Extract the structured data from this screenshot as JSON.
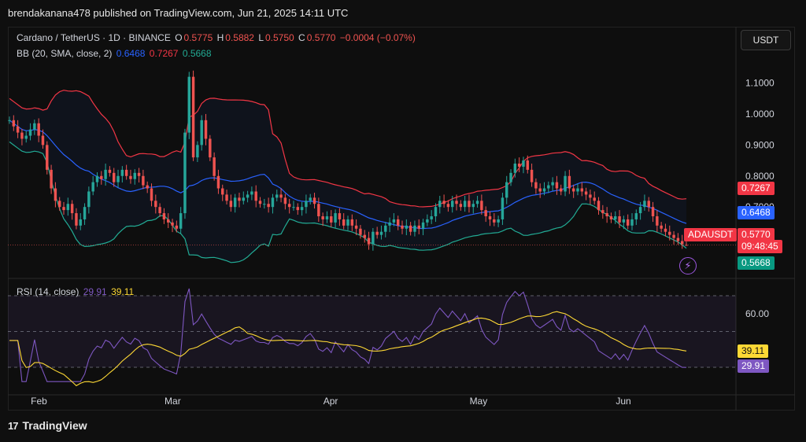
{
  "header": {
    "published_by": "brendakanana478 published on TradingView.com, Jun 21, 2025 14:11 UTC"
  },
  "symbol": {
    "title": "Cardano / TetherUS · 1D · BINANCE",
    "open_label": "O",
    "open": "0.5775",
    "high_label": "H",
    "high": "0.5882",
    "low_label": "L",
    "low": "0.5750",
    "close_label": "C",
    "close": "0.5770",
    "change": "−0.0004 (−0.07%)",
    "unit_button": "USDT",
    "ticker": "ADAUSDT",
    "countdown": "09:48:45"
  },
  "bb_legend": {
    "label": "BB (20, SMA, close, 2)",
    "basis": "0.6468",
    "upper": "0.7267",
    "lower": "0.5668"
  },
  "rsi_legend": {
    "label": "RSI (14, close)",
    "rsi": "29.91",
    "rsi_ma": "39.11"
  },
  "footer": {
    "brand": "TradingView",
    "logo_glyph": "17"
  },
  "colors": {
    "up": "#26a69a",
    "down": "#ef5350",
    "bb_upper": "#f23645",
    "bb_basis": "#2962ff",
    "bb_lower": "#22ab94",
    "rsi": "#7e57c2",
    "rsi_ma": "#fdd835"
  },
  "chart_data": [
    {
      "type": "candlestick",
      "title": "Cardano / TetherUS · 1D · BINANCE",
      "price_axis": {
        "ticks": [
          "1.1000",
          "1.0000",
          "0.9000",
          "0.8000",
          "0.7000",
          "0.6000"
        ],
        "range": [
          0.5,
          1.18
        ],
        "scale": "linear"
      },
      "time_axis": {
        "ticks": [
          "Feb",
          "Mar",
          "Apr",
          "May",
          "Jun"
        ]
      },
      "ohlc_last": {
        "open": 0.5775,
        "high": 0.5882,
        "low": 0.575,
        "close": 0.577
      },
      "close_series": [
        0.98,
        0.96,
        0.94,
        0.92,
        0.93,
        0.95,
        0.97,
        0.93,
        0.9,
        0.82,
        0.76,
        0.72,
        0.7,
        0.69,
        0.71,
        0.68,
        0.64,
        0.66,
        0.7,
        0.75,
        0.78,
        0.8,
        0.79,
        0.82,
        0.81,
        0.78,
        0.8,
        0.82,
        0.8,
        0.79,
        0.81,
        0.8,
        0.77,
        0.76,
        0.72,
        0.7,
        0.68,
        0.66,
        0.65,
        0.64,
        0.63,
        0.68,
        0.94,
        1.12,
        0.86,
        0.9,
        0.98,
        0.92,
        0.86,
        0.8,
        0.76,
        0.74,
        0.72,
        0.7,
        0.73,
        0.72,
        0.73,
        0.74,
        0.75,
        0.72,
        0.71,
        0.71,
        0.7,
        0.73,
        0.74,
        0.73,
        0.71,
        0.7,
        0.7,
        0.69,
        0.7,
        0.72,
        0.73,
        0.71,
        0.67,
        0.66,
        0.67,
        0.65,
        0.68,
        0.66,
        0.64,
        0.66,
        0.64,
        0.63,
        0.61,
        0.6,
        0.58,
        0.62,
        0.61,
        0.62,
        0.64,
        0.65,
        0.66,
        0.64,
        0.63,
        0.64,
        0.62,
        0.64,
        0.63,
        0.65,
        0.66,
        0.67,
        0.7,
        0.72,
        0.71,
        0.7,
        0.72,
        0.71,
        0.7,
        0.72,
        0.7,
        0.71,
        0.72,
        0.69,
        0.67,
        0.66,
        0.65,
        0.66,
        0.73,
        0.78,
        0.81,
        0.84,
        0.83,
        0.85,
        0.82,
        0.78,
        0.76,
        0.75,
        0.76,
        0.77,
        0.78,
        0.76,
        0.75,
        0.8,
        0.76,
        0.75,
        0.76,
        0.75,
        0.74,
        0.73,
        0.72,
        0.69,
        0.68,
        0.67,
        0.66,
        0.67,
        0.65,
        0.66,
        0.64,
        0.66,
        0.68,
        0.7,
        0.72,
        0.7,
        0.67,
        0.64,
        0.63,
        0.62,
        0.61,
        0.6,
        0.59,
        0.58,
        0.577
      ],
      "bollinger": {
        "period": 20,
        "basis": "SMA",
        "source": "close",
        "stddev": 2,
        "upper_last": 0.7267,
        "basis_last": 0.6468,
        "lower_last": 0.5668
      },
      "series_labels": [
        {
          "name": "ADAUSDT",
          "value": "0.5770"
        },
        {
          "name": "BB upper",
          "value": "0.7267"
        },
        {
          "name": "BB basis",
          "value": "0.6468"
        },
        {
          "name": "BB lower",
          "value": "0.5668"
        }
      ]
    },
    {
      "type": "line",
      "title": "RSI (14, close)",
      "y_axis": {
        "ticks": [
          "60.00"
        ],
        "levels": [
          70,
          50,
          30
        ]
      },
      "series": [
        {
          "name": "RSI",
          "last": 29.91
        },
        {
          "name": "RSI MA",
          "last": 39.11
        }
      ]
    }
  ]
}
